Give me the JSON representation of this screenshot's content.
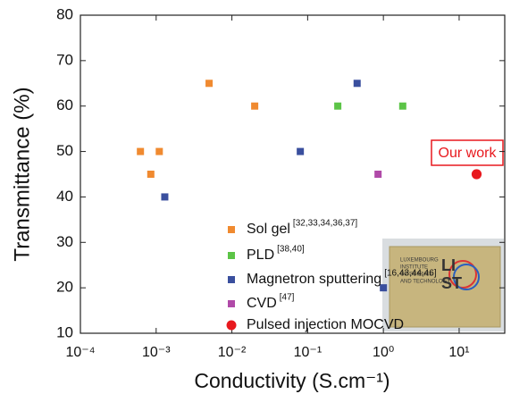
{
  "chart_data": {
    "type": "scatter",
    "x_label": "Conductivity (S.cm⁻¹)",
    "y_label": "Transmittance (%)",
    "xscale": "log",
    "xlim": [
      0.0001,
      40
    ],
    "xticks": [
      {
        "value": 0.0001,
        "label": "10⁻⁴"
      },
      {
        "value": 0.001,
        "label": "10⁻³"
      },
      {
        "value": 0.01,
        "label": "10⁻²"
      },
      {
        "value": 0.1,
        "label": "10⁻¹"
      },
      {
        "value": 1,
        "label": "10⁰"
      },
      {
        "value": 10,
        "label": "10¹"
      }
    ],
    "ylim": [
      10,
      80
    ],
    "yticks": [
      10,
      20,
      30,
      40,
      50,
      60,
      70,
      80
    ],
    "series": [
      {
        "name": "Sol gel",
        "ref": "[32,33,34,36,37]",
        "color": "#f08a30",
        "marker": "square",
        "x": [
          0.00062,
          0.00085,
          0.0011,
          0.005,
          0.02
        ],
        "values": [
          50,
          45,
          50,
          65,
          60
        ]
      },
      {
        "name": "PLD",
        "ref": "[38,40]",
        "color": "#5cc447",
        "marker": "square",
        "x": [
          0.25,
          1.8
        ],
        "values": [
          60,
          60
        ]
      },
      {
        "name": "Magnetron sputtering",
        "ref": "[16,43,44,46]",
        "color": "#3a4f9e",
        "marker": "square",
        "x": [
          0.0013,
          0.08,
          0.45,
          1.0
        ],
        "values": [
          40,
          50,
          65,
          20
        ]
      },
      {
        "name": "CVD",
        "ref": "[47]",
        "color": "#b04aa8",
        "marker": "square",
        "x": [
          0.85
        ],
        "values": [
          45
        ]
      },
      {
        "name": "Pulsed injection MOCVD",
        "color": "#e8191e",
        "marker": "circle",
        "x": [
          17
        ],
        "values": [
          45
        ]
      }
    ],
    "annotation": "Our work",
    "inset": {
      "institute": [
        "LUXEMBOURG",
        "INSTITUTE",
        "OF SCIENCE",
        "AND TECHNOLOGY"
      ],
      "logo": [
        "LI",
        "ST"
      ]
    }
  }
}
